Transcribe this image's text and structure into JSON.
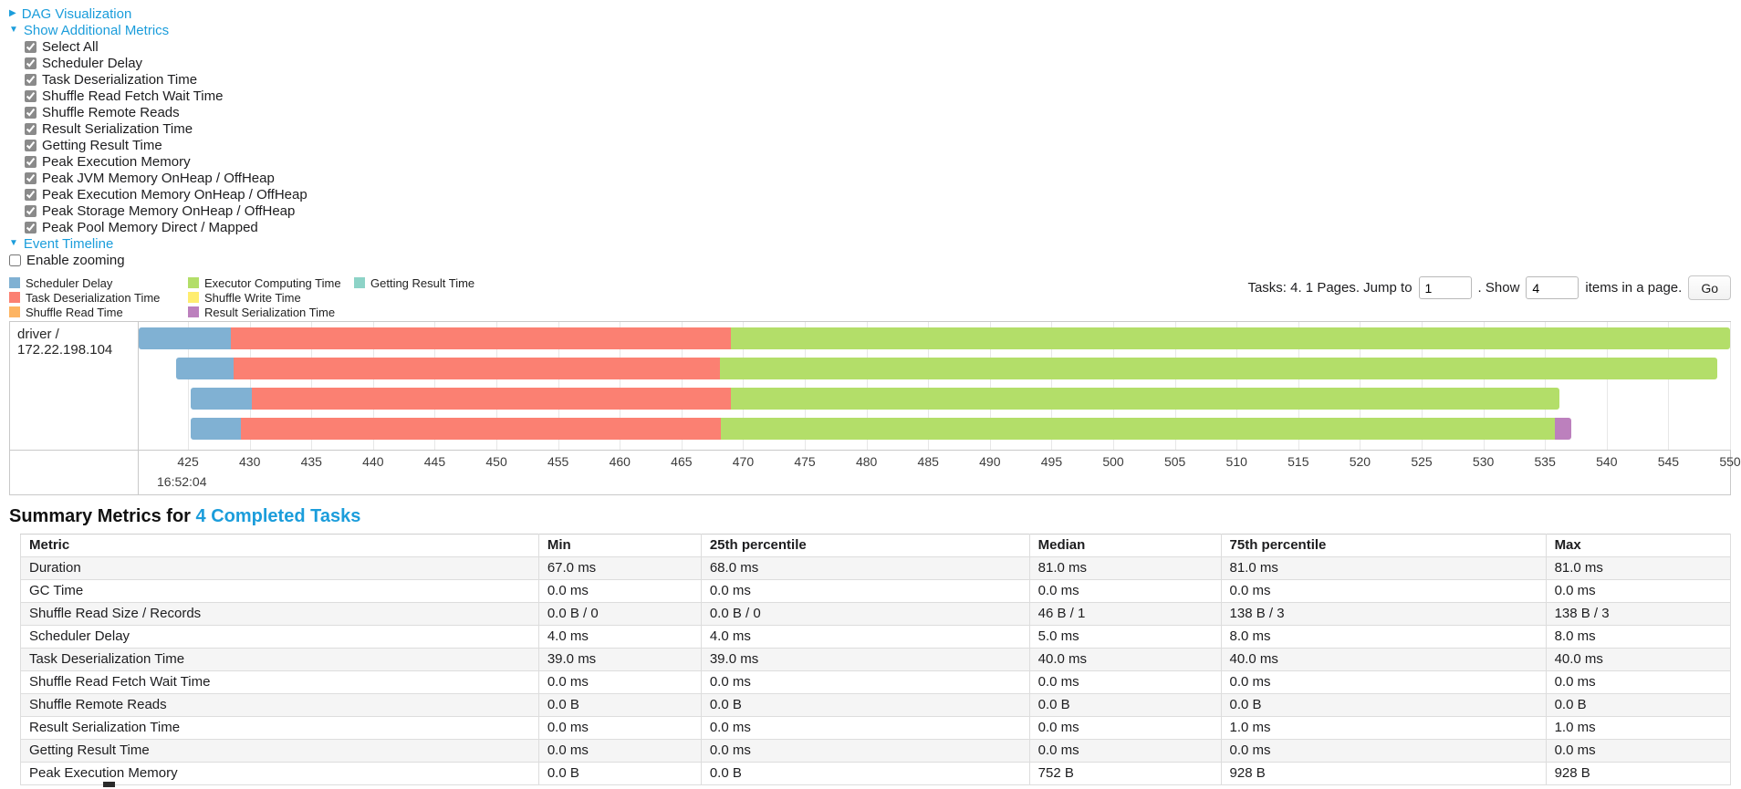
{
  "colors": {
    "link": "#1b9ddb"
  },
  "dag": {
    "label": "DAG Visualization"
  },
  "metrics_panel": {
    "label": "Show Additional Metrics",
    "checkboxes": [
      {
        "label": "Select All",
        "checked": true
      },
      {
        "label": "Scheduler Delay",
        "checked": true
      },
      {
        "label": "Task Deserialization Time",
        "checked": true
      },
      {
        "label": "Shuffle Read Fetch Wait Time",
        "checked": true
      },
      {
        "label": "Shuffle Remote Reads",
        "checked": true
      },
      {
        "label": "Result Serialization Time",
        "checked": true
      },
      {
        "label": "Getting Result Time",
        "checked": true
      },
      {
        "label": "Peak Execution Memory",
        "checked": true
      },
      {
        "label": "Peak JVM Memory OnHeap / OffHeap",
        "checked": true
      },
      {
        "label": "Peak Execution Memory OnHeap / OffHeap",
        "checked": true
      },
      {
        "label": "Peak Storage Memory OnHeap / OffHeap",
        "checked": true
      },
      {
        "label": "Peak Pool Memory Direct / Mapped",
        "checked": true
      }
    ]
  },
  "event_timeline": {
    "label": "Event Timeline",
    "enable_zooming": {
      "label": "Enable zooming",
      "checked": false
    },
    "legend": [
      {
        "label": "Scheduler Delay",
        "color": "#80B1D3"
      },
      {
        "label": "Task Deserialization Time",
        "color": "#FB8072"
      },
      {
        "label": "Shuffle Read Time",
        "color": "#FDB462"
      },
      {
        "label": "Executor Computing Time",
        "color": "#B3DE69"
      },
      {
        "label": "Shuffle Write Time",
        "color": "#FFED6F"
      },
      {
        "label": "Result Serialization Time",
        "color": "#BC80BD"
      },
      {
        "label": "Getting Result Time",
        "color": "#8DD3C7"
      }
    ]
  },
  "pagination": {
    "lead_text": "Tasks: 4. 1 Pages. Jump to",
    "jump_value": "1",
    "show_text": ". Show",
    "show_value": "4",
    "items_text": "items in a page.",
    "go_label": "Go"
  },
  "chart_data": {
    "type": "timeline",
    "group_label": "driver / 172.22.198.104",
    "axis": {
      "start": 421,
      "end": 550,
      "tick_first": 425,
      "tick_interval": 5,
      "tick_last": 550,
      "major_label": "16:52:04"
    },
    "tasks": [
      {
        "segments": [
          {
            "metric": "Scheduler Delay",
            "start": 421.0,
            "end": 428.5
          },
          {
            "metric": "Task Deserialization Time",
            "start": 428.5,
            "end": 469.0
          },
          {
            "metric": "Executor Computing Time",
            "start": 469.0,
            "end": 550.0
          }
        ]
      },
      {
        "segments": [
          {
            "metric": "Scheduler Delay",
            "start": 424.0,
            "end": 428.7
          },
          {
            "metric": "Task Deserialization Time",
            "start": 428.7,
            "end": 468.1
          },
          {
            "metric": "Executor Computing Time",
            "start": 468.1,
            "end": 549.0
          }
        ]
      },
      {
        "segments": [
          {
            "metric": "Scheduler Delay",
            "start": 425.2,
            "end": 430.2
          },
          {
            "metric": "Task Deserialization Time",
            "start": 430.2,
            "end": 469.0
          },
          {
            "metric": "Executor Computing Time",
            "start": 469.0,
            "end": 536.2
          }
        ]
      },
      {
        "segments": [
          {
            "metric": "Scheduler Delay",
            "start": 425.2,
            "end": 429.3
          },
          {
            "metric": "Task Deserialization Time",
            "start": 429.3,
            "end": 468.2
          },
          {
            "metric": "Executor Computing Time",
            "start": 468.2,
            "end": 535.8
          },
          {
            "metric": "Result Serialization Time",
            "start": 535.8,
            "end": 537.1
          }
        ]
      }
    ]
  },
  "summary": {
    "title_prefix": "Summary Metrics for",
    "title_link": "4 Completed Tasks",
    "table": {
      "columns": [
        "Metric",
        "Min",
        "25th percentile",
        "Median",
        "75th percentile",
        "Max"
      ],
      "rows": [
        [
          "Duration",
          "67.0 ms",
          "68.0 ms",
          "81.0 ms",
          "81.0 ms",
          "81.0 ms"
        ],
        [
          "GC Time",
          "0.0 ms",
          "0.0 ms",
          "0.0 ms",
          "0.0 ms",
          "0.0 ms"
        ],
        [
          "Shuffle Read Size / Records",
          "0.0 B / 0",
          "0.0 B / 0",
          "46 B / 1",
          "138 B / 3",
          "138 B / 3"
        ],
        [
          "Scheduler Delay",
          "4.0 ms",
          "4.0 ms",
          "5.0 ms",
          "8.0 ms",
          "8.0 ms"
        ],
        [
          "Task Deserialization Time",
          "39.0 ms",
          "39.0 ms",
          "40.0 ms",
          "40.0 ms",
          "40.0 ms"
        ],
        [
          "Shuffle Read Fetch Wait Time",
          "0.0 ms",
          "0.0 ms",
          "0.0 ms",
          "0.0 ms",
          "0.0 ms"
        ],
        [
          "Shuffle Remote Reads",
          "0.0 B",
          "0.0 B",
          "0.0 B",
          "0.0 B",
          "0.0 B"
        ],
        [
          "Result Serialization Time",
          "0.0 ms",
          "0.0 ms",
          "0.0 ms",
          "1.0 ms",
          "1.0 ms"
        ],
        [
          "Getting Result Time",
          "0.0 ms",
          "0.0 ms",
          "0.0 ms",
          "0.0 ms",
          "0.0 ms"
        ],
        [
          "Peak Execution Memory",
          "0.0 B",
          "0.0 B",
          "752 B",
          "928 B",
          "928 B"
        ]
      ]
    }
  }
}
